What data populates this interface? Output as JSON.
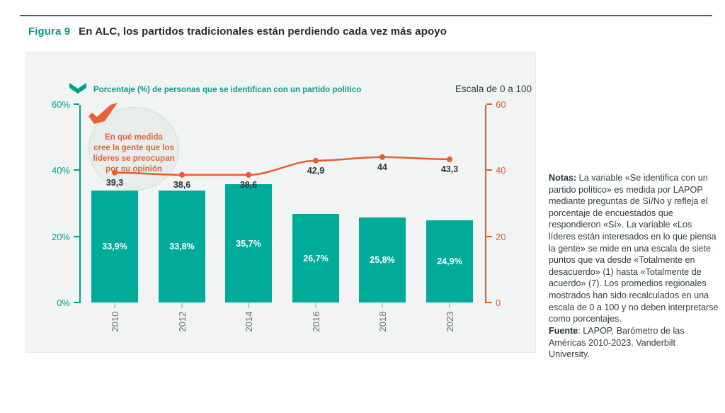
{
  "page": {
    "figure_label": "Figura 9",
    "figure_title": "En ALC, los partidos tradicionales están perdiendo cada vez más apoyo"
  },
  "chart": {
    "legend_label": "Porcentaje (%) de personas que se identifican con un partido político",
    "scale_label": "Escala de 0 a 100",
    "annotation_text": "En qué medida\ncree la gente que los\nlíderes se preocupan\npor su opinión",
    "colors": {
      "bar_teal": "#00ab9a",
      "axis_teal": "#00a08e",
      "line_orange": "#e2602f",
      "annotation_orange": "#e8613c",
      "dark_text": "#22313a"
    }
  },
  "chart_data": {
    "type": "bar",
    "categories": [
      "2010",
      "2012",
      "2014",
      "2016",
      "2018",
      "2023"
    ],
    "series": [
      {
        "name": "Porcentaje (%) de personas que se identifican con un partido político",
        "chart_type": "bar",
        "axis": "left",
        "values": [
          33.9,
          33.8,
          35.7,
          26.7,
          25.8,
          24.9
        ],
        "labels": [
          "33,9%",
          "33,8%",
          "35,7%",
          "26,7%",
          "25,8%",
          "24,9%"
        ],
        "color": "#00ab9a"
      },
      {
        "name": "En qué medida cree la gente que los líderes se preocupan por su opinión",
        "chart_type": "line",
        "axis": "right",
        "values": [
          39.3,
          38.6,
          38.6,
          42.9,
          44,
          43.3
        ],
        "labels": [
          "39,3",
          "38,6",
          "38,6",
          "42,9",
          "44",
          "43,3"
        ],
        "color": "#e2602f"
      }
    ],
    "left_axis": {
      "tick_labels": [
        "0%",
        "20%",
        "40%",
        "60%"
      ],
      "tick_values": [
        0,
        20,
        40,
        60
      ],
      "range": [
        0,
        60
      ]
    },
    "right_axis": {
      "tick_labels": [
        "0",
        "20",
        "40",
        "60"
      ],
      "tick_values": [
        0,
        20,
        40,
        60
      ],
      "range": [
        0,
        60
      ],
      "title": "Escala de 0 a 100"
    },
    "grid": false,
    "legend_position": "top-left",
    "title": "En ALC, los partidos tradicionales están perdiendo cada vez más apoyo"
  },
  "notes": {
    "label": "Notas:",
    "body": " La variable «Se identifica con un partido político» es medida por LAPOP mediante preguntas de Sí/No y refleja el porcentaje de encuestados que respondieron «Sí». La variable «Los líderes están interesados en lo que piensa la gente» se mide en una escala de siete puntos que va desde «Totalmente en desacuerdo» (1) hasta «Totalmente de acuerdo» (7). Los promedios regionales mostrados han sido recalculados en una escala de 0 a 100 y no deben interpretarse como porcentajes.",
    "fuente_label": "Fuente",
    "fuente_body": ": LAPOP, Barómetro de las Américas 2010-2023. Vanderbilt University."
  }
}
